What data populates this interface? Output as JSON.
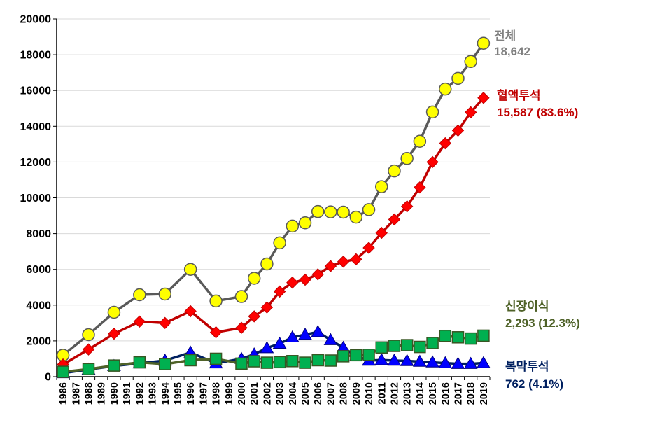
{
  "chart_data": {
    "type": "line",
    "title": "",
    "xlabel": "",
    "ylabel": "",
    "ylim": [
      0,
      20000
    ],
    "yticks": [
      0,
      2000,
      4000,
      6000,
      8000,
      10000,
      12000,
      14000,
      16000,
      18000,
      20000
    ],
    "x": [
      1986,
      1987,
      1988,
      1989,
      1990,
      1991,
      1992,
      1993,
      1994,
      1995,
      1996,
      1997,
      1998,
      1999,
      2000,
      2001,
      2002,
      2003,
      2004,
      2005,
      2006,
      2007,
      2008,
      2009,
      2010,
      2011,
      2012,
      2013,
      2014,
      2015,
      2016,
      2017,
      2018,
      2019
    ],
    "grid": "horizontal",
    "series": [
      {
        "name": "전체",
        "end_label": "18,642",
        "color": "#595959",
        "marker": "circle",
        "marker_fill": "#ffff00",
        "label_color": "#808080",
        "x": [
          1986,
          1988,
          1990,
          1992,
          1994,
          1996,
          1998,
          2000,
          2001,
          2002,
          2003,
          2004,
          2005,
          2006,
          2007,
          2008,
          2009,
          2010,
          2011,
          2012,
          2013,
          2014,
          2015,
          2016,
          2017,
          2018,
          2019
        ],
        "values": [
          1200,
          2350,
          3600,
          4580,
          4620,
          6000,
          4230,
          4480,
          5500,
          6300,
          7480,
          8420,
          8600,
          9230,
          9210,
          9200,
          8920,
          9340,
          10620,
          11500,
          12200,
          13160,
          14800,
          16080,
          16680,
          17620,
          18642
        ]
      },
      {
        "name": "혈액투석",
        "end_label": "15,587 (83.6%)",
        "color": "#c00000",
        "marker": "diamond",
        "marker_fill": "#ff0000",
        "label_color": "#c00000",
        "x": [
          1986,
          1988,
          1990,
          1992,
          1994,
          1996,
          1998,
          2000,
          2001,
          2002,
          2003,
          2004,
          2005,
          2006,
          2007,
          2008,
          2009,
          2010,
          2011,
          2012,
          2013,
          2014,
          2015,
          2016,
          2017,
          2018,
          2019
        ],
        "values": [
          680,
          1520,
          2400,
          3080,
          3000,
          3660,
          2480,
          2730,
          3370,
          3870,
          4760,
          5260,
          5420,
          5720,
          6180,
          6430,
          6560,
          7200,
          8040,
          8790,
          9520,
          10580,
          12000,
          13050,
          13760,
          14780,
          15587
        ]
      },
      {
        "name": "복막투석",
        "end_label": "762 (4.1%)",
        "color": "#002060",
        "marker": "triangle",
        "marker_fill": "#0000ff",
        "label_color": "#002060",
        "x": [
          1986,
          1988,
          1990,
          1992,
          1994,
          1996,
          1998,
          2000,
          2001,
          2002,
          2003,
          2004,
          2005,
          2006,
          2007,
          2008,
          2009,
          2010,
          2011,
          2012,
          2013,
          2014,
          2015,
          2016,
          2017,
          2018,
          2019
        ],
        "values": [
          200,
          400,
          600,
          750,
          900,
          1350,
          750,
          1000,
          1250,
          1600,
          1850,
          2200,
          2350,
          2500,
          2050,
          1620,
          1150,
          900,
          930,
          900,
          880,
          840,
          800,
          760,
          720,
          720,
          762
        ]
      },
      {
        "name": "신장이식",
        "end_label": "2,293 (12.3%)",
        "color": "#4f6228",
        "marker": "square",
        "marker_fill": "#00b050",
        "label_color": "#4f6228",
        "x": [
          1986,
          1988,
          1990,
          1992,
          1994,
          1996,
          1998,
          2000,
          2001,
          2002,
          2003,
          2004,
          2005,
          2006,
          2007,
          2008,
          2009,
          2010,
          2011,
          2012,
          2013,
          2014,
          2015,
          2016,
          2017,
          2018,
          2019
        ],
        "values": [
          270,
          420,
          620,
          800,
          700,
          920,
          1000,
          730,
          860,
          780,
          810,
          870,
          780,
          920,
          900,
          1140,
          1200,
          1220,
          1630,
          1720,
          1760,
          1660,
          1880,
          2280,
          2200,
          2130,
          2293
        ]
      }
    ]
  }
}
